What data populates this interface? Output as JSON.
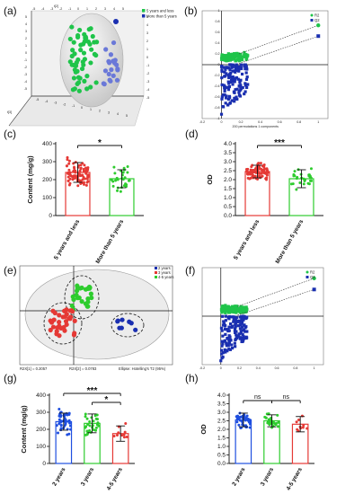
{
  "panel_labels": [
    "(a)",
    "(b)",
    "(c)",
    "(d)",
    "(e)",
    "(f)",
    "(g)",
    "(h)"
  ],
  "colors": {
    "green": "#1fc44a",
    "dark_blue": "#1a2fb0",
    "light_blue": "#6a78d8",
    "red": "#e53935",
    "bar_green": "#2ecc2e",
    "bar_blue": "#1f4fe0",
    "bar_red": "#e53935"
  },
  "chart_data": [
    {
      "panel": "(a)",
      "type": "scatter",
      "view": "3D score plot",
      "axis_names": [
        "t[1]",
        "t[2]",
        "t[3]"
      ],
      "x_ticks": [
        "-5",
        "-4",
        "-3",
        "-2",
        "-1",
        "0",
        "1",
        "2",
        "3",
        "4",
        "5"
      ],
      "legend": [
        "5 years and less",
        "More than 5 years"
      ]
    },
    {
      "panel": "(b)",
      "type": "scatter",
      "view": "permutation test",
      "y_ticks": [
        "1",
        "0.8",
        "0.6",
        "0.4",
        "0.2",
        "0",
        "-0.2",
        "-0.4",
        "-0.6",
        "-0.8",
        "-1"
      ],
      "x_ticks": [
        "-0.2",
        "0",
        "0.2",
        "0.4",
        "0.6",
        "0.8",
        "1"
      ],
      "xlabel": "200 permutations 1 components",
      "legend": [
        "R2",
        "Q2"
      ],
      "endpoints": {
        "R2": [
          1.0,
          0.73
        ],
        "Q2": [
          1.0,
          0.53
        ]
      }
    },
    {
      "panel": "(c)",
      "type": "bar",
      "categories": [
        "5 years and less",
        "More than 5 years"
      ],
      "values": [
        240,
        205
      ],
      "errors": [
        55,
        50
      ],
      "ylabel": "Content (mg/g)",
      "y_ticks": [
        "0",
        "100",
        "200",
        "300",
        "400"
      ],
      "ylim": [
        0,
        400
      ],
      "significance": [
        {
          "between": [
            0,
            1
          ],
          "label": "*"
        }
      ]
    },
    {
      "panel": "(d)",
      "type": "bar",
      "categories": [
        "5 years and less",
        "More than 5 years"
      ],
      "values": [
        2.45,
        2.05
      ],
      "errors": [
        0.35,
        0.5
      ],
      "ylabel": "OD",
      "y_ticks": [
        "0.0",
        "0.5",
        "1.0",
        "1.5",
        "2.0",
        "2.5",
        "3.0",
        "3.5",
        "4.0"
      ],
      "ylim": [
        0,
        4.0
      ],
      "significance": [
        {
          "between": [
            0,
            1
          ],
          "label": "***"
        }
      ]
    },
    {
      "panel": "(e)",
      "type": "scatter",
      "view": "PCA score plot",
      "legend": [
        "2 years",
        "3 years",
        "4-5 years"
      ],
      "footer": [
        "R2X[1] = 0.2057",
        "R2X[2] = 0.0783",
        "Ellipse: Hotelling's T2 (95%)"
      ]
    },
    {
      "panel": "(f)",
      "type": "scatter",
      "view": "permutation test",
      "legend": [
        "R2",
        "Q2"
      ],
      "x_ticks": [
        "-0.2",
        "0",
        "0.2",
        "0.4",
        "0.6",
        "0.8",
        "1"
      ],
      "endpoints": {
        "R2": [
          1.0,
          0.78
        ],
        "Q2": [
          1.0,
          0.55
        ]
      }
    },
    {
      "panel": "(g)",
      "type": "bar",
      "categories": [
        "2 years",
        "3 years",
        "4-5 years"
      ],
      "values": [
        245,
        235,
        175
      ],
      "errors": [
        50,
        55,
        45
      ],
      "ylabel": "Content (mg/g)",
      "y_ticks": [
        "0",
        "100",
        "200",
        "300",
        "400"
      ],
      "ylim": [
        0,
        400
      ],
      "significance": [
        {
          "between": [
            0,
            2
          ],
          "label": "***"
        },
        {
          "between": [
            1,
            2
          ],
          "label": "*"
        }
      ]
    },
    {
      "panel": "(h)",
      "type": "bar",
      "categories": [
        "2 years",
        "3 years",
        "4-5 years"
      ],
      "values": [
        2.55,
        2.5,
        2.3
      ],
      "errors": [
        0.4,
        0.35,
        0.45
      ],
      "ylabel": "OD",
      "y_ticks": [
        "0.0",
        "0.5",
        "1.0",
        "1.5",
        "2.0",
        "2.5",
        "3.0",
        "3.5",
        "4.0"
      ],
      "ylim": [
        0,
        4.0
      ],
      "significance": [
        {
          "between": [
            0,
            1
          ],
          "label": "ns"
        },
        {
          "between": [
            1,
            2
          ],
          "label": "ns"
        }
      ]
    }
  ]
}
